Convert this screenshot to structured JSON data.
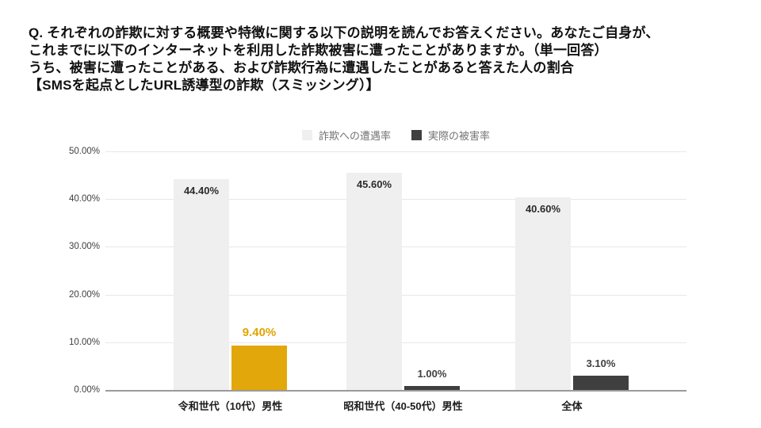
{
  "title": {
    "line1": "Q. それぞれの詐欺に対する概要や特徴に関する以下の説明を読んでお答えください。あなたご自身が、",
    "line2": "これまでに以下のインターネットを利用した詐欺被害に遭ったことがありますか。（単一回答）",
    "line3": "うち、被害に遭ったことがある、および詐欺行為に遭遇したことがあると答えた人の割合",
    "line4": "【SMSを起点としたURL誘導型の詐欺（スミッシング）】"
  },
  "chart_data": {
    "type": "bar",
    "categories": [
      "令和世代（10代）男性",
      "昭和世代（40-50代）男性",
      "全体"
    ],
    "series": [
      {
        "name": "詐欺への遭遇率",
        "values": [
          44.4,
          45.6,
          40.6
        ],
        "labels": [
          "44.40%",
          "45.60%",
          "40.60%"
        ],
        "color": "#EFEFEF",
        "label_color": "#2b2b2b",
        "label_position": "inside-top"
      },
      {
        "name": "実際の被害率",
        "values": [
          9.4,
          1.0,
          3.1
        ],
        "labels": [
          "9.40%",
          "1.00%",
          "3.10%"
        ],
        "color": "#3F3F3F",
        "colors": [
          "#E2A70B",
          "#3F3F3F",
          "#3F3F3F"
        ],
        "label_color": "#3F3F3F",
        "label_colors": [
          "#E2A400",
          "#3F3F3F",
          "#3F3F3F"
        ],
        "label_sizes": [
          15,
          13,
          13
        ],
        "label_position": "above"
      }
    ],
    "ylim": [
      0,
      50
    ],
    "yticks": [
      "0.00%",
      "10.00%",
      "20.00%",
      "30.00%",
      "40.00%",
      "50.00%"
    ],
    "grid": true,
    "legend_position": "top",
    "axis_colors": {
      "gridline": "#e7e7e7",
      "baseline": "#9b9b9b"
    }
  }
}
